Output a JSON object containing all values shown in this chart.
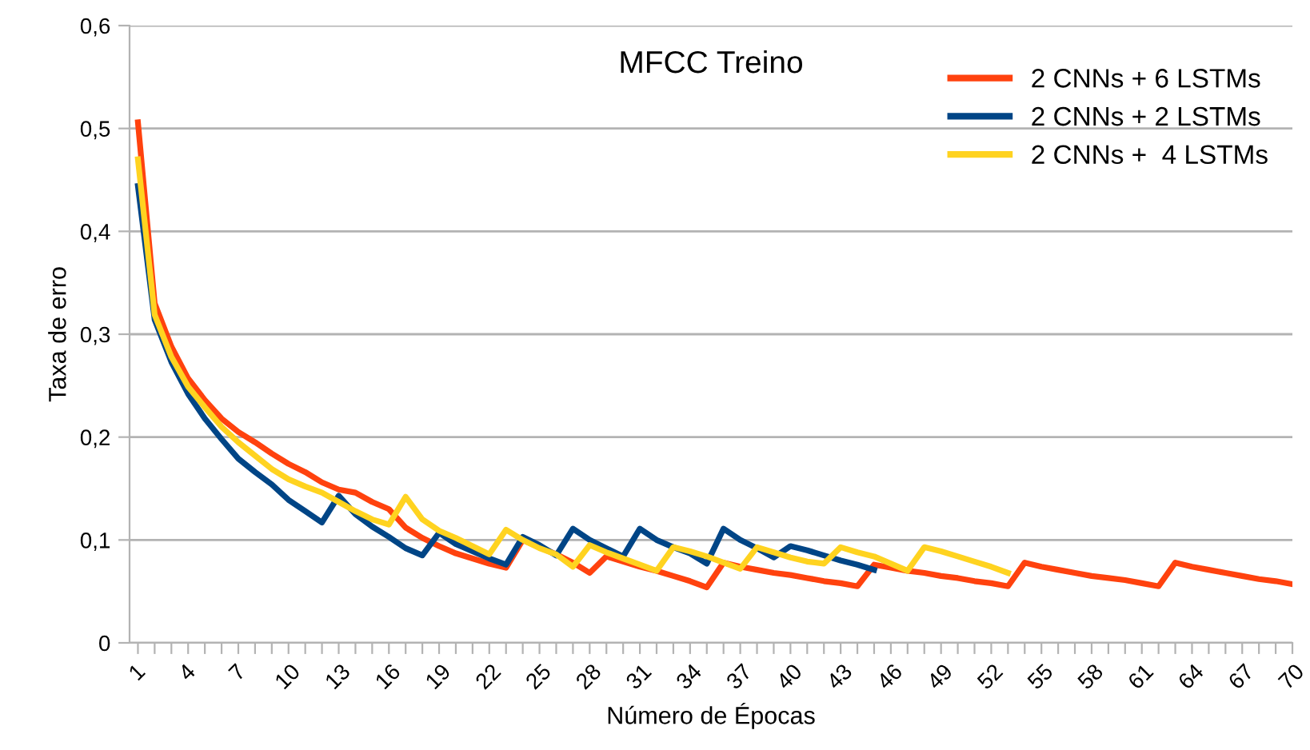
{
  "chart_data": {
    "type": "line",
    "title": "MFCC Treino",
    "xlabel": "Número de Épocas",
    "ylabel": "Taxa de erro",
    "categories": [
      "1",
      null,
      null,
      "4",
      null,
      null,
      "7",
      null,
      null,
      "10",
      null,
      null,
      "13",
      null,
      null,
      "16",
      null,
      null,
      "19",
      null,
      null,
      "22",
      null,
      null,
      "25",
      null,
      null,
      "28",
      null,
      null,
      "31",
      null,
      null,
      "34",
      null,
      null,
      "37",
      null,
      null,
      "40",
      null,
      null,
      "43",
      null,
      null,
      "46",
      null,
      null,
      "49",
      null,
      null,
      "52",
      null,
      null,
      "55",
      null,
      null,
      "58",
      null,
      null,
      "61",
      null,
      null,
      "64",
      null,
      null,
      "67",
      null,
      null,
      "70"
    ],
    "series": [
      {
        "name": "2 CNNs + 6 LSTMs",
        "color": "#ff420e",
        "values": [
          0.506,
          0.33,
          0.288,
          0.257,
          0.236,
          0.218,
          0.205,
          0.195,
          0.184,
          0.174,
          0.166,
          0.156,
          0.149,
          0.146,
          0.137,
          0.13,
          0.112,
          0.102,
          0.094,
          0.087,
          0.082,
          0.077,
          0.073,
          0.1,
          0.093,
          0.086,
          0.078,
          0.068,
          0.084,
          0.079,
          0.074,
          0.07,
          0.065,
          0.06,
          0.054,
          0.078,
          0.074,
          0.071,
          0.068,
          0.066,
          0.063,
          0.06,
          0.058,
          0.055,
          0.076,
          0.073,
          0.07,
          0.068,
          0.065,
          0.063,
          0.06,
          0.058,
          0.055,
          0.078,
          0.074,
          0.071,
          0.068,
          0.065,
          0.063,
          0.061,
          0.058,
          0.055,
          0.078,
          0.074,
          0.071,
          0.068,
          0.065,
          0.062,
          0.06,
          0.057
        ]
      },
      {
        "name": "2 CNNs + 2 LSTMs",
        "color": "#004586",
        "values": [
          0.444,
          0.314,
          0.273,
          0.242,
          0.218,
          0.198,
          0.179,
          0.166,
          0.154,
          0.139,
          0.128,
          0.117,
          0.143,
          0.125,
          0.113,
          0.103,
          0.092,
          0.085,
          0.107,
          0.096,
          0.089,
          0.082,
          0.076,
          0.103,
          0.095,
          0.085,
          0.111,
          0.1,
          0.092,
          0.084,
          0.111,
          0.1,
          0.093,
          0.087,
          0.077,
          0.111,
          0.1,
          0.092,
          0.083,
          0.094,
          0.09,
          0.085,
          0.08,
          0.076,
          0.071,
          null,
          null,
          null,
          null,
          null,
          null,
          null,
          null,
          null,
          null,
          null,
          null,
          null,
          null,
          null,
          null,
          null,
          null,
          null,
          null,
          null,
          null,
          null,
          null,
          null
        ]
      },
      {
        "name": "2 CNNs +  4 LSTMs",
        "color": "#ffd320",
        "values": [
          0.47,
          0.319,
          0.278,
          0.249,
          0.229,
          0.21,
          0.195,
          0.182,
          0.169,
          0.159,
          0.152,
          0.146,
          0.137,
          0.128,
          0.12,
          0.115,
          0.142,
          0.12,
          0.109,
          0.102,
          0.094,
          0.086,
          0.11,
          0.1,
          0.092,
          0.086,
          0.074,
          0.095,
          0.088,
          0.082,
          0.076,
          0.07,
          0.093,
          0.089,
          0.084,
          0.078,
          0.072,
          0.093,
          0.088,
          0.083,
          0.079,
          0.077,
          0.093,
          0.088,
          0.084,
          0.077,
          0.07,
          0.093,
          0.089,
          0.084,
          0.079,
          0.074,
          0.068,
          null,
          null,
          null,
          null,
          null,
          null,
          null,
          null,
          null,
          null,
          null,
          null,
          null,
          null,
          null,
          null,
          null
        ]
      }
    ],
    "ylim": [
      0,
      0.6
    ],
    "yticks": [
      {
        "value": 0,
        "label": "0"
      },
      {
        "value": 0.1,
        "label": "0,1"
      },
      {
        "value": 0.2,
        "label": "0,2"
      },
      {
        "value": 0.3,
        "label": "0,3"
      },
      {
        "value": 0.4,
        "label": "0,4"
      },
      {
        "value": 0.5,
        "label": "0,5"
      },
      {
        "value": 0.6,
        "label": "0,6"
      }
    ],
    "grid": "y",
    "legend": "top right",
    "marker": "none",
    "line_style": "solid"
  }
}
